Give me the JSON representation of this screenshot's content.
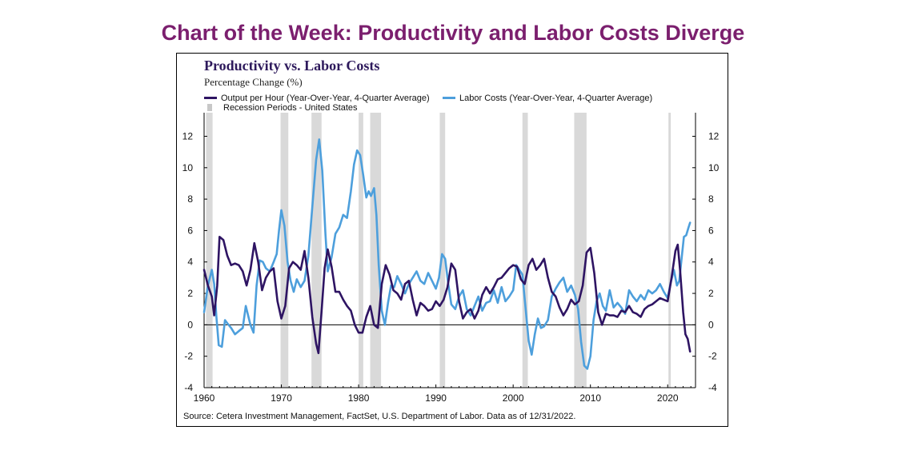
{
  "page": {
    "heading": "Chart of the Week: Productivity and Labor Costs Diverge"
  },
  "colors": {
    "heading": "#7b1f6e",
    "output_series": "#2e1463",
    "labor_series": "#4d9fdc",
    "recession": "#d9d9d9"
  },
  "chart_data": {
    "type": "line",
    "title": "Productivity vs. Labor Costs",
    "subtitle": "Percentage Change (%)",
    "source": "Source: Cetera Investment Management, FactSet, U.S. Department of Labor. Data as of 12/31/2022.",
    "xlim": [
      1960,
      2023.6
    ],
    "ylim": [
      -4,
      13.5
    ],
    "x_ticks": [
      1960,
      1970,
      1980,
      1990,
      2000,
      2010,
      2020
    ],
    "y_ticks": [
      -4,
      -2,
      0,
      2,
      4,
      6,
      8,
      10,
      12
    ],
    "y_axis_both_sides": true,
    "grid": false,
    "zero_line": true,
    "legend": {
      "position": "top",
      "entries": [
        "Output per Hour (Year-Over-Year, 4-Quarter Average)",
        "Labor Costs (Year-Over-Year, 4-Quarter Average)",
        "Recession Periods - United States"
      ]
    },
    "recessions": [
      [
        1960.25,
        1961.1
      ],
      [
        1969.9,
        1970.9
      ],
      [
        1973.9,
        1975.2
      ],
      [
        1980.0,
        1980.6
      ],
      [
        1981.5,
        1982.9
      ],
      [
        1990.5,
        1991.2
      ],
      [
        2001.2,
        2001.9
      ],
      [
        2007.9,
        2009.5
      ],
      [
        2020.1,
        2020.4
      ]
    ],
    "series": [
      {
        "name": "Output per Hour (Year-Over-Year, 4-Quarter Average)",
        "points": [
          [
            1960.0,
            3.5
          ],
          [
            1960.5,
            2.5
          ],
          [
            1961.0,
            1.8
          ],
          [
            1961.3,
            0.6
          ],
          [
            1961.7,
            2.5
          ],
          [
            1962.0,
            5.6
          ],
          [
            1962.5,
            5.4
          ],
          [
            1963.0,
            4.4
          ],
          [
            1963.5,
            3.8
          ],
          [
            1964.0,
            3.9
          ],
          [
            1964.5,
            3.8
          ],
          [
            1965.0,
            3.4
          ],
          [
            1965.5,
            2.5
          ],
          [
            1966.0,
            3.5
          ],
          [
            1966.5,
            5.2
          ],
          [
            1967.0,
            4.0
          ],
          [
            1967.5,
            2.2
          ],
          [
            1968.0,
            3.0
          ],
          [
            1968.5,
            3.4
          ],
          [
            1969.0,
            3.6
          ],
          [
            1969.5,
            1.5
          ],
          [
            1970.0,
            0.4
          ],
          [
            1970.5,
            1.2
          ],
          [
            1971.0,
            3.6
          ],
          [
            1971.5,
            4.0
          ],
          [
            1972.0,
            3.8
          ],
          [
            1972.5,
            3.5
          ],
          [
            1973.0,
            4.7
          ],
          [
            1973.5,
            3.0
          ],
          [
            1974.0,
            0.5
          ],
          [
            1974.5,
            -1.2
          ],
          [
            1974.8,
            -1.8
          ],
          [
            1975.2,
            0.8
          ],
          [
            1975.6,
            3.6
          ],
          [
            1976.0,
            4.8
          ],
          [
            1976.5,
            3.7
          ],
          [
            1977.0,
            2.1
          ],
          [
            1977.5,
            2.1
          ],
          [
            1978.0,
            1.6
          ],
          [
            1978.5,
            1.2
          ],
          [
            1979.0,
            0.9
          ],
          [
            1979.5,
            0.0
          ],
          [
            1980.0,
            -0.5
          ],
          [
            1980.5,
            -0.5
          ],
          [
            1981.0,
            0.5
          ],
          [
            1981.5,
            1.2
          ],
          [
            1982.0,
            0.0
          ],
          [
            1982.5,
            -0.2
          ],
          [
            1983.0,
            2.6
          ],
          [
            1983.5,
            3.8
          ],
          [
            1984.0,
            3.2
          ],
          [
            1984.5,
            2.2
          ],
          [
            1985.0,
            2.0
          ],
          [
            1985.5,
            1.6
          ],
          [
            1986.0,
            2.6
          ],
          [
            1986.5,
            2.8
          ],
          [
            1987.0,
            1.6
          ],
          [
            1987.5,
            0.6
          ],
          [
            1988.0,
            1.4
          ],
          [
            1988.5,
            1.2
          ],
          [
            1989.0,
            0.9
          ],
          [
            1989.5,
            1.0
          ],
          [
            1990.0,
            1.5
          ],
          [
            1990.5,
            1.2
          ],
          [
            1991.0,
            1.6
          ],
          [
            1991.5,
            2.4
          ],
          [
            1992.0,
            3.9
          ],
          [
            1992.5,
            3.5
          ],
          [
            1993.0,
            1.5
          ],
          [
            1993.5,
            0.4
          ],
          [
            1994.0,
            0.8
          ],
          [
            1994.5,
            1.0
          ],
          [
            1995.0,
            0.4
          ],
          [
            1995.5,
            0.9
          ],
          [
            1996.0,
            1.9
          ],
          [
            1996.5,
            2.4
          ],
          [
            1997.0,
            2.0
          ],
          [
            1997.5,
            2.4
          ],
          [
            1998.0,
            2.9
          ],
          [
            1998.5,
            3.0
          ],
          [
            1999.0,
            3.3
          ],
          [
            1999.5,
            3.6
          ],
          [
            2000.0,
            3.8
          ],
          [
            2000.5,
            3.7
          ],
          [
            2001.0,
            2.9
          ],
          [
            2001.5,
            2.6
          ],
          [
            2002.0,
            3.8
          ],
          [
            2002.5,
            4.2
          ],
          [
            2003.0,
            3.5
          ],
          [
            2003.5,
            3.8
          ],
          [
            2004.0,
            4.2
          ],
          [
            2004.5,
            3.0
          ],
          [
            2005.0,
            2.1
          ],
          [
            2005.5,
            1.8
          ],
          [
            2006.0,
            1.1
          ],
          [
            2006.5,
            0.6
          ],
          [
            2007.0,
            1.0
          ],
          [
            2007.5,
            1.6
          ],
          [
            2008.0,
            1.3
          ],
          [
            2008.5,
            1.5
          ],
          [
            2009.0,
            2.5
          ],
          [
            2009.5,
            4.6
          ],
          [
            2010.0,
            4.9
          ],
          [
            2010.5,
            3.3
          ],
          [
            2011.0,
            0.8
          ],
          [
            2011.5,
            0.0
          ],
          [
            2012.0,
            0.7
          ],
          [
            2012.5,
            0.6
          ],
          [
            2013.0,
            0.6
          ],
          [
            2013.5,
            0.5
          ],
          [
            2014.0,
            0.9
          ],
          [
            2014.5,
            0.8
          ],
          [
            2015.0,
            1.2
          ],
          [
            2015.5,
            0.8
          ],
          [
            2016.0,
            0.7
          ],
          [
            2016.5,
            0.5
          ],
          [
            2017.0,
            1.0
          ],
          [
            2017.5,
            1.2
          ],
          [
            2018.0,
            1.3
          ],
          [
            2018.5,
            1.5
          ],
          [
            2019.0,
            1.7
          ],
          [
            2019.5,
            1.6
          ],
          [
            2020.0,
            1.5
          ],
          [
            2020.5,
            3.0
          ],
          [
            2021.0,
            4.7
          ],
          [
            2021.3,
            5.1
          ],
          [
            2021.6,
            3.5
          ],
          [
            2022.0,
            0.8
          ],
          [
            2022.3,
            -0.6
          ],
          [
            2022.6,
            -0.9
          ],
          [
            2022.9,
            -1.7
          ]
        ]
      },
      {
        "name": "Labor Costs (Year-Over-Year, 4-Quarter Average)",
        "points": [
          [
            1960.0,
            0.8
          ],
          [
            1960.5,
            2.5
          ],
          [
            1961.0,
            3.5
          ],
          [
            1961.3,
            2.6
          ],
          [
            1961.6,
            0.5
          ],
          [
            1961.9,
            -1.3
          ],
          [
            1962.3,
            -1.4
          ],
          [
            1962.7,
            0.3
          ],
          [
            1963.0,
            0.1
          ],
          [
            1963.5,
            -0.2
          ],
          [
            1964.0,
            -0.6
          ],
          [
            1964.5,
            -0.4
          ],
          [
            1965.0,
            -0.2
          ],
          [
            1965.4,
            1.2
          ],
          [
            1966.0,
            0.0
          ],
          [
            1966.4,
            -0.5
          ],
          [
            1966.8,
            2.5
          ],
          [
            1967.2,
            4.1
          ],
          [
            1967.6,
            4.0
          ],
          [
            1968.0,
            3.6
          ],
          [
            1968.5,
            3.4
          ],
          [
            1969.0,
            4.0
          ],
          [
            1969.4,
            4.5
          ],
          [
            1969.7,
            6.0
          ],
          [
            1970.0,
            7.3
          ],
          [
            1970.4,
            6.3
          ],
          [
            1970.8,
            4.0
          ],
          [
            1971.2,
            2.8
          ],
          [
            1971.6,
            2.1
          ],
          [
            1972.0,
            2.9
          ],
          [
            1972.5,
            2.4
          ],
          [
            1973.0,
            2.8
          ],
          [
            1973.5,
            4.4
          ],
          [
            1974.0,
            7.5
          ],
          [
            1974.5,
            10.5
          ],
          [
            1974.9,
            11.8
          ],
          [
            1975.3,
            9.8
          ],
          [
            1975.7,
            5.8
          ],
          [
            1976.0,
            3.4
          ],
          [
            1976.5,
            4.3
          ],
          [
            1977.0,
            5.8
          ],
          [
            1977.5,
            6.2
          ],
          [
            1978.0,
            7.0
          ],
          [
            1978.5,
            6.8
          ],
          [
            1979.0,
            8.5
          ],
          [
            1979.4,
            10.2
          ],
          [
            1979.8,
            11.1
          ],
          [
            1980.2,
            10.8
          ],
          [
            1980.6,
            9.5
          ],
          [
            1981.0,
            8.1
          ],
          [
            1981.3,
            8.5
          ],
          [
            1981.6,
            8.2
          ],
          [
            1982.0,
            8.7
          ],
          [
            1982.3,
            7.0
          ],
          [
            1982.6,
            3.8
          ],
          [
            1983.0,
            0.9
          ],
          [
            1983.4,
            0.0
          ],
          [
            1983.8,
            1.4
          ],
          [
            1984.2,
            2.5
          ],
          [
            1984.6,
            2.4
          ],
          [
            1985.0,
            3.1
          ],
          [
            1985.5,
            2.6
          ],
          [
            1986.0,
            2.0
          ],
          [
            1986.5,
            2.6
          ],
          [
            1987.0,
            3.0
          ],
          [
            1987.5,
            3.4
          ],
          [
            1988.0,
            2.8
          ],
          [
            1988.5,
            2.6
          ],
          [
            1989.0,
            3.3
          ],
          [
            1989.5,
            2.8
          ],
          [
            1990.0,
            2.3
          ],
          [
            1990.4,
            3.0
          ],
          [
            1990.8,
            4.5
          ],
          [
            1991.2,
            4.2
          ],
          [
            1991.6,
            2.6
          ],
          [
            1992.0,
            1.3
          ],
          [
            1992.5,
            1.0
          ],
          [
            1993.0,
            1.8
          ],
          [
            1993.5,
            2.2
          ],
          [
            1994.0,
            1.0
          ],
          [
            1994.5,
            0.6
          ],
          [
            1995.0,
            1.2
          ],
          [
            1995.5,
            1.8
          ],
          [
            1996.0,
            0.9
          ],
          [
            1996.5,
            1.4
          ],
          [
            1997.0,
            1.5
          ],
          [
            1997.5,
            2.2
          ],
          [
            1998.0,
            1.4
          ],
          [
            1998.5,
            2.4
          ],
          [
            1999.0,
            1.5
          ],
          [
            1999.5,
            1.8
          ],
          [
            2000.0,
            2.2
          ],
          [
            2000.4,
            3.8
          ],
          [
            2000.8,
            3.5
          ],
          [
            2001.2,
            3.2
          ],
          [
            2001.6,
            1.1
          ],
          [
            2002.0,
            -1.0
          ],
          [
            2002.4,
            -1.9
          ],
          [
            2002.8,
            -0.6
          ],
          [
            2003.2,
            0.4
          ],
          [
            2003.6,
            -0.2
          ],
          [
            2004.0,
            -0.1
          ],
          [
            2004.5,
            0.3
          ],
          [
            2005.0,
            1.8
          ],
          [
            2005.5,
            2.3
          ],
          [
            2006.0,
            2.7
          ],
          [
            2006.5,
            3.0
          ],
          [
            2007.0,
            2.1
          ],
          [
            2007.5,
            2.5
          ],
          [
            2008.0,
            1.9
          ],
          [
            2008.4,
            1.0
          ],
          [
            2008.8,
            -1.1
          ],
          [
            2009.2,
            -2.6
          ],
          [
            2009.6,
            -2.8
          ],
          [
            2010.0,
            -2.0
          ],
          [
            2010.4,
            0.3
          ],
          [
            2010.8,
            1.5
          ],
          [
            2011.2,
            2.0
          ],
          [
            2011.6,
            1.2
          ],
          [
            2012.0,
            0.9
          ],
          [
            2012.5,
            2.2
          ],
          [
            2013.0,
            1.1
          ],
          [
            2013.5,
            1.4
          ],
          [
            2014.0,
            1.1
          ],
          [
            2014.5,
            0.7
          ],
          [
            2015.0,
            2.2
          ],
          [
            2015.5,
            1.8
          ],
          [
            2016.0,
            1.5
          ],
          [
            2016.5,
            1.9
          ],
          [
            2017.0,
            1.6
          ],
          [
            2017.5,
            2.2
          ],
          [
            2018.0,
            2.0
          ],
          [
            2018.5,
            2.2
          ],
          [
            2019.0,
            2.6
          ],
          [
            2019.5,
            2.1
          ],
          [
            2020.0,
            1.7
          ],
          [
            2020.4,
            2.7
          ],
          [
            2020.8,
            3.5
          ],
          [
            2021.2,
            2.5
          ],
          [
            2021.5,
            2.8
          ],
          [
            2021.8,
            4.2
          ],
          [
            2022.1,
            5.6
          ],
          [
            2022.4,
            5.7
          ],
          [
            2022.7,
            6.2
          ],
          [
            2022.9,
            6.5
          ]
        ]
      }
    ]
  }
}
